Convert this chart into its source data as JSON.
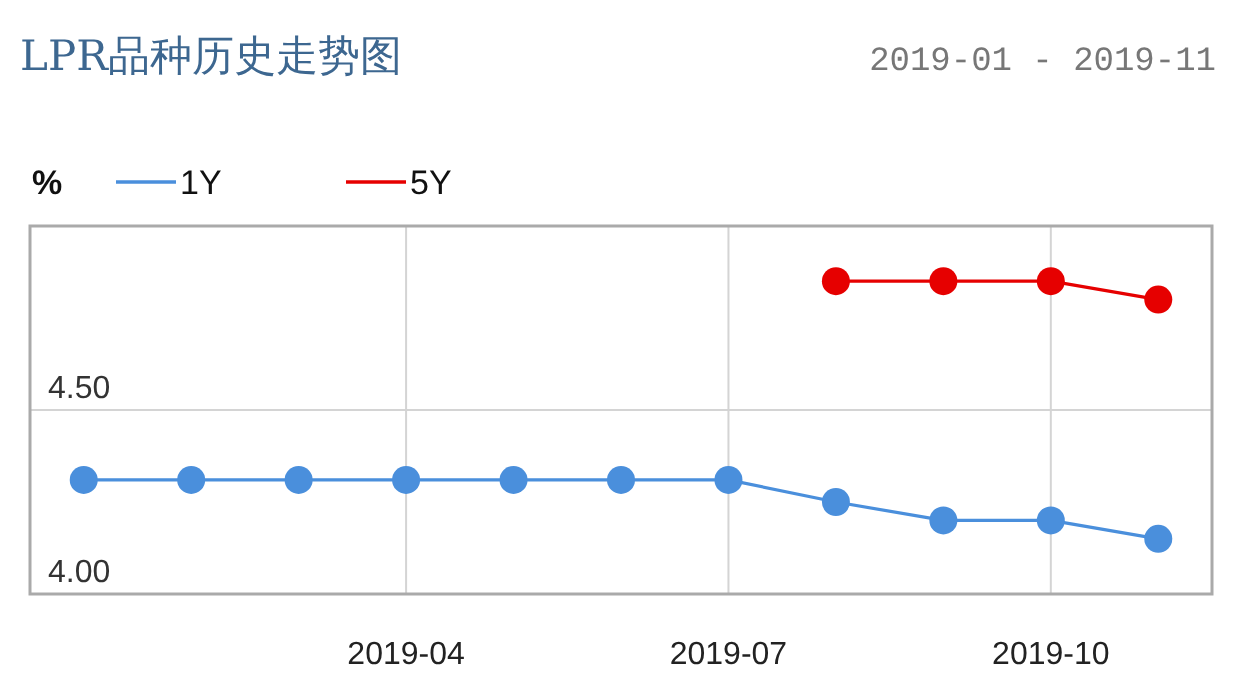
{
  "chart_data": {
    "type": "line",
    "title": "LPR品种历史走势图",
    "subtitle": "2019-01 - 2019-11",
    "ylabel": "%",
    "categories": [
      null,
      null,
      null,
      "2019-04",
      null,
      null,
      "2019-07",
      null,
      null,
      "2019-10",
      null
    ],
    "series": [
      {
        "name": "1Y",
        "color": "#4a8fdc",
        "values": [
          4.31,
          4.31,
          4.31,
          4.31,
          4.31,
          4.31,
          4.31,
          4.25,
          4.2,
          4.2,
          4.15
        ]
      },
      {
        "name": "5Y",
        "color": "#e60000",
        "values": [
          null,
          null,
          null,
          null,
          null,
          null,
          null,
          4.85,
          4.85,
          4.85,
          4.8
        ]
      }
    ],
    "ylim": [
      4,
      5
    ],
    "yticks": [
      {
        "value": 4,
        "label": "4.00"
      },
      {
        "value": 4.5,
        "label": "4.50"
      }
    ],
    "grid": true,
    "legend": "top left",
    "marker": "circle",
    "line_style": "solid"
  }
}
